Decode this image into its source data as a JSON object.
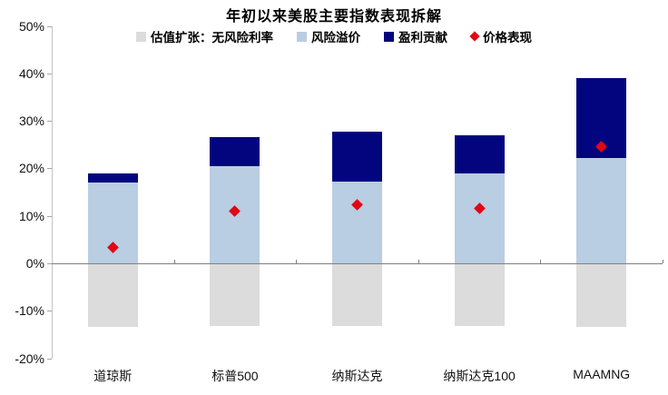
{
  "chart_data": {
    "type": "bar",
    "stacked": true,
    "title": "年初以来美股主要指数表现拆解",
    "unit": "%",
    "categories": [
      "道琼斯",
      "标普500",
      "纳斯达克",
      "纳斯达克100",
      "MAAMNG"
    ],
    "series": [
      {
        "name": "估值扩张：无风险利率",
        "color": "#dcdcdc",
        "values": [
          -13.4,
          -13.2,
          -13.2,
          -13.1,
          -13.4
        ]
      },
      {
        "name": "风险溢价",
        "color": "#b9cde3",
        "values": [
          17.0,
          20.5,
          17.3,
          19.0,
          22.1
        ]
      },
      {
        "name": "盈利贡献",
        "color": "#02057e",
        "values": [
          2.0,
          6.0,
          10.4,
          8.0,
          17.0
        ]
      }
    ],
    "markers": {
      "name": "价格表现",
      "shape": "diamond",
      "color": "#e30613",
      "values": [
        3.4,
        11.0,
        12.4,
        11.6,
        24.5
      ]
    },
    "bar_totals": [
      19.0,
      26.5,
      27.7,
      27.0,
      39.1
    ],
    "ylim": [
      -20,
      50
    ],
    "yticks": [
      50,
      40,
      30,
      20,
      10,
      0,
      -10,
      -20
    ],
    "ytick_labels": [
      "50%",
      "40%",
      "30%",
      "20%",
      "10%",
      "0%",
      "-10%",
      "-20%"
    ],
    "grid": false,
    "legend_position": "top",
    "colors": {
      "axis_line": "#c3c3c3",
      "y_tick": "#a6a6a6",
      "zero_line": "#808080",
      "text": "#000000",
      "background": "#ffffff"
    }
  }
}
